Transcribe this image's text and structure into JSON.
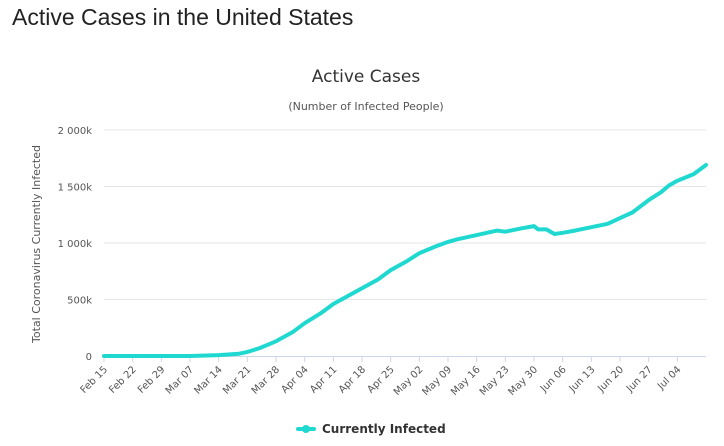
{
  "page": {
    "heading": "Active Cases in the United States"
  },
  "chart_data": {
    "type": "line",
    "title": "Active Cases",
    "subtitle": "(Number of Infected People)",
    "ylabel": "Total Coronavirus Currently Infected",
    "xlabel": "",
    "ylim": [
      0,
      2000000
    ],
    "y_ticks": [
      {
        "value": 0,
        "label": "0"
      },
      {
        "value": 500000,
        "label": "500k"
      },
      {
        "value": 1000000,
        "label": "1 000k"
      },
      {
        "value": 1500000,
        "label": "1 500k"
      },
      {
        "value": 2000000,
        "label": "2 000k"
      }
    ],
    "x_tick_labels": [
      "Feb 15",
      "Feb 22",
      "Feb 29",
      "Mar 07",
      "Mar 14",
      "Mar 21",
      "Mar 28",
      "Apr 04",
      "Apr 11",
      "Apr 18",
      "Apr 25",
      "May 02",
      "May 09",
      "May 16",
      "May 23",
      "May 30",
      "Jun 06",
      "Jun 13",
      "Jun 20",
      "Jun 27",
      "Jul 04"
    ],
    "grid": true,
    "legend": "bottom-center",
    "color": "#1fd9d1",
    "series": [
      {
        "name": "Currently Infected",
        "x": [
          "Feb 15",
          "Feb 22",
          "Feb 29",
          "Mar 07",
          "Mar 14",
          "Mar 19",
          "Mar 21",
          "Mar 24",
          "Mar 28",
          "Apr 01",
          "Apr 04",
          "Apr 08",
          "Apr 11",
          "Apr 15",
          "Apr 18",
          "Apr 22",
          "Apr 25",
          "Apr 29",
          "May 02",
          "May 06",
          "May 09",
          "May 11",
          "May 16",
          "May 21",
          "May 23",
          "May 27",
          "May 30",
          "May 31",
          "Jun 02",
          "Jun 04",
          "Jun 06",
          "Jun 09",
          "Jun 13",
          "Jun 17",
          "Jun 20",
          "Jun 23",
          "Jun 27",
          "Jun 30",
          "Jul 02",
          "Jul 04",
          "Jul 08",
          "Jul 11"
        ],
        "y": [
          0,
          0,
          0,
          0,
          8000,
          20000,
          35000,
          70000,
          130000,
          210000,
          290000,
          380000,
          460000,
          540000,
          600000,
          680000,
          760000,
          840000,
          910000,
          970000,
          1010000,
          1030000,
          1070000,
          1110000,
          1100000,
          1130000,
          1150000,
          1120000,
          1120000,
          1080000,
          1090000,
          1110000,
          1140000,
          1170000,
          1220000,
          1270000,
          1380000,
          1450000,
          1510000,
          1550000,
          1610000,
          1690000
        ]
      }
    ]
  }
}
